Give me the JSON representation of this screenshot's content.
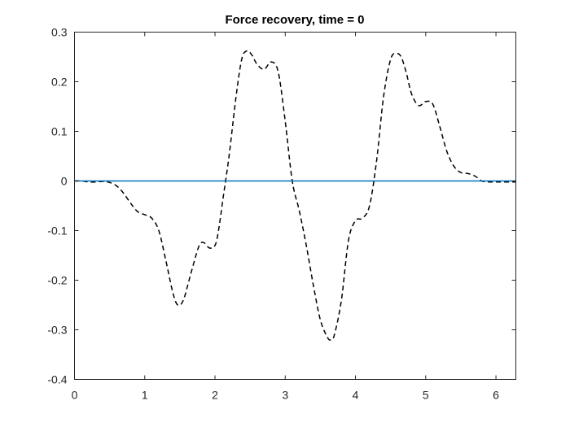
{
  "chart_data": {
    "type": "line",
    "title": "Force recovery, time = 0",
    "xlabel": "",
    "ylabel": "",
    "xlim": [
      0,
      6.2832
    ],
    "ylim": [
      -0.4,
      0.3
    ],
    "xticks": [
      0,
      1,
      2,
      3,
      4,
      5,
      6
    ],
    "yticks": [
      -0.4,
      -0.3,
      -0.2,
      -0.1,
      0,
      0.1,
      0.2,
      0.3
    ],
    "xtick_labels": [
      "0",
      "1",
      "2",
      "3",
      "4",
      "5",
      "6"
    ],
    "ytick_labels": [
      "-0.4",
      "-0.3",
      "-0.2",
      "-0.1",
      "0",
      "0.1",
      "0.2",
      "0.3"
    ],
    "grid": false,
    "legend": "none",
    "series": [
      {
        "style": "dashed",
        "color": "#000000",
        "x": [
          0,
          0.1,
          0.2,
          0.3,
          0.4,
          0.5,
          0.6,
          0.7,
          0.8,
          0.9,
          1.0,
          1.1,
          1.2,
          1.3,
          1.4,
          1.47,
          1.55,
          1.65,
          1.75,
          1.8,
          1.85,
          1.92,
          2.0,
          2.05,
          2.12,
          2.2,
          2.3,
          2.38,
          2.45,
          2.52,
          2.6,
          2.7,
          2.8,
          2.9,
          3.0,
          3.1,
          3.2,
          3.3,
          3.4,
          3.5,
          3.6,
          3.65,
          3.7,
          3.8,
          3.9,
          4.0,
          4.1,
          4.2,
          4.3,
          4.4,
          4.5,
          4.58,
          4.65,
          4.72,
          4.8,
          4.9,
          5.0,
          5.1,
          5.2,
          5.3,
          5.4,
          5.5,
          5.6,
          5.7,
          5.8,
          5.9,
          6.0,
          6.1,
          6.2832
        ],
        "y": [
          0,
          0,
          -0.002,
          -0.002,
          -0.001,
          -0.003,
          -0.01,
          -0.025,
          -0.045,
          -0.062,
          -0.068,
          -0.075,
          -0.1,
          -0.16,
          -0.225,
          -0.25,
          -0.24,
          -0.19,
          -0.14,
          -0.125,
          -0.125,
          -0.135,
          -0.13,
          -0.1,
          -0.03,
          0.05,
          0.17,
          0.245,
          0.262,
          0.255,
          0.235,
          0.225,
          0.24,
          0.22,
          0.12,
          0.0,
          -0.06,
          -0.13,
          -0.21,
          -0.28,
          -0.315,
          -0.32,
          -0.31,
          -0.24,
          -0.12,
          -0.08,
          -0.075,
          -0.05,
          0.04,
          0.17,
          0.245,
          0.257,
          0.25,
          0.22,
          0.175,
          0.152,
          0.16,
          0.155,
          0.11,
          0.06,
          0.03,
          0.017,
          0.015,
          0.01,
          0.0,
          -0.002,
          -0.002,
          -0.002,
          -0.002
        ]
      },
      {
        "style": "solid",
        "color": "#0072BD",
        "x": [
          0,
          6.2832
        ],
        "y": [
          0,
          0
        ]
      }
    ]
  }
}
